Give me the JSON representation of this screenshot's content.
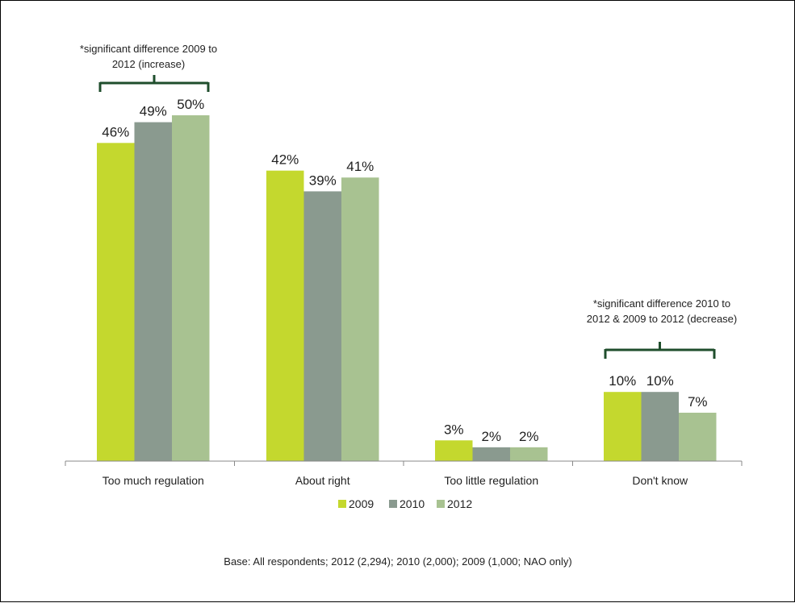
{
  "chart_data": {
    "type": "bar",
    "categories": [
      "Too much regulation",
      "About right",
      "Too little regulation",
      "Don't know"
    ],
    "series": [
      {
        "name": "2009",
        "color": "#c4d82e",
        "values": [
          46,
          42,
          3,
          10
        ]
      },
      {
        "name": "2010",
        "color": "#8a9a8f",
        "values": [
          49,
          39,
          2,
          10
        ]
      },
      {
        "name": "2012",
        "color": "#a8c291",
        "values": [
          50,
          41,
          2,
          7
        ]
      }
    ],
    "value_suffix": "%",
    "ylim": [
      0,
      50
    ],
    "grid": false,
    "legend_position": "bottom",
    "annotations": [
      {
        "category": "Too much regulation",
        "lines": [
          "*significant difference 2009  to",
          "2012 (increase)"
        ]
      },
      {
        "category": "Don't know",
        "lines": [
          "*significant difference 2010  to",
          "2012 & 2009 to 2012 (decrease)"
        ]
      }
    ],
    "bracket_color": "#1f4e2c"
  },
  "footnote": "Base: All respondents; 2012 (2,294); 2010 (2,000); 2009 (1,000; NAO only)"
}
